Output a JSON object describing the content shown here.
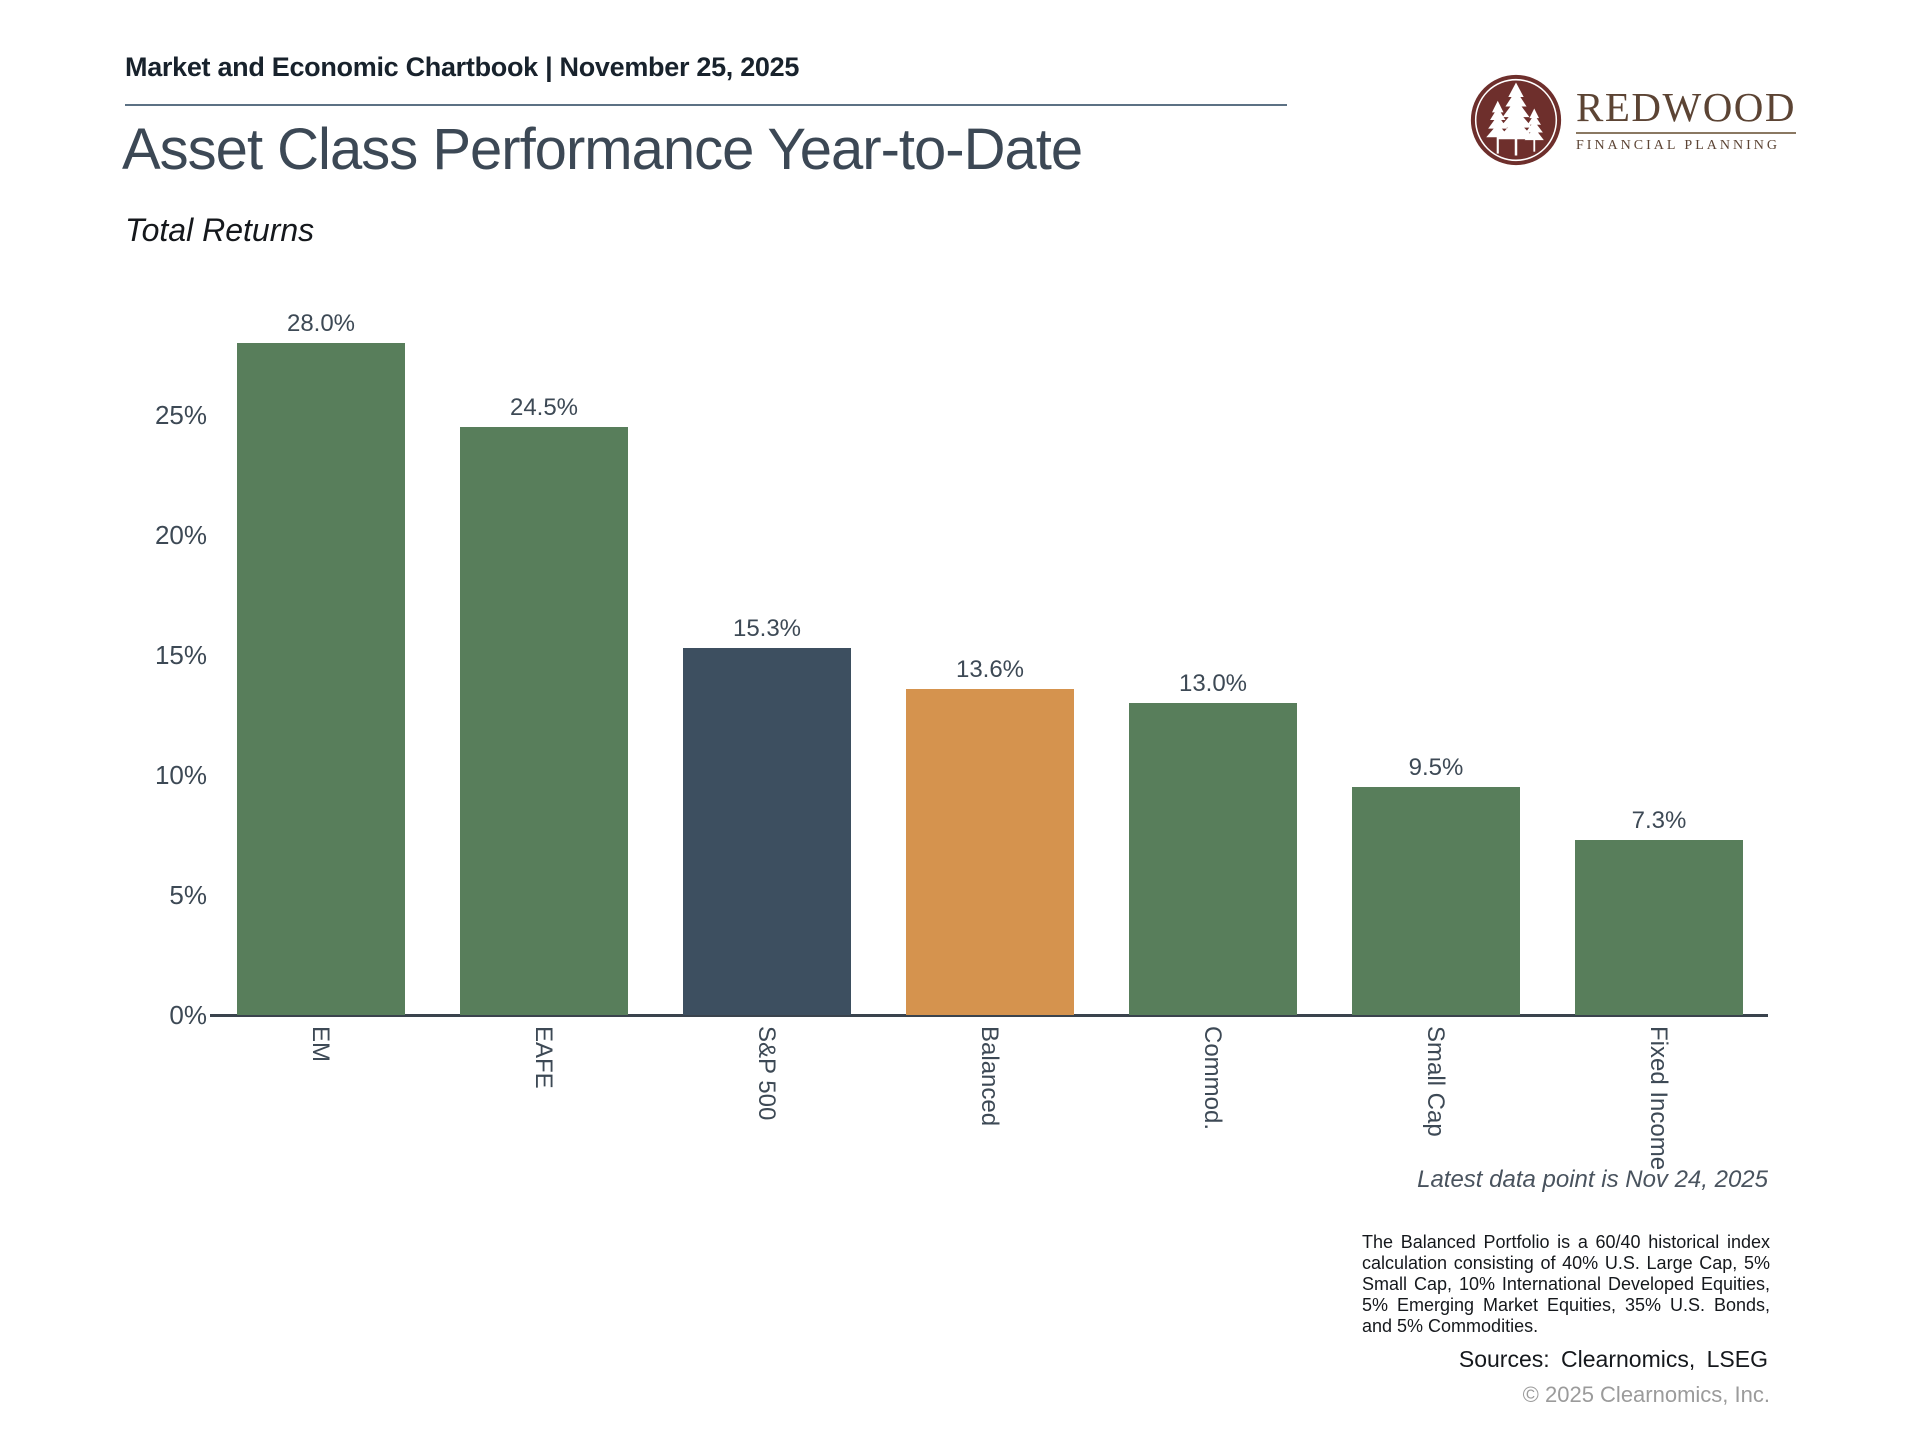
{
  "header": {
    "kicker": "Market and Economic Chartbook | November 25, 2025",
    "title": "Asset Class Performance Year-to-Date",
    "subtitle": "Total Returns"
  },
  "logo": {
    "name": "REDWOOD",
    "tagline": "FINANCIAL PLANNING",
    "icon": "pine-trees-circle",
    "circle_color": "#6e2f2c",
    "text_color": "#5c4434"
  },
  "chart_data": {
    "type": "bar",
    "title": "Asset Class Performance Year-to-Date",
    "subtitle": "Total Returns",
    "categories": [
      "EM",
      "EAFE",
      "S&P 500",
      "Balanced",
      "Commod.",
      "Small Cap",
      "Fixed Income"
    ],
    "values": [
      28.0,
      24.5,
      15.3,
      13.6,
      13.0,
      9.5,
      7.3
    ],
    "value_labels": [
      "28.0%",
      "24.5%",
      "15.3%",
      "13.6%",
      "13.0%",
      "9.5%",
      "7.3%"
    ],
    "bar_colors": [
      "#587e5b",
      "#587e5b",
      "#3d4f60",
      "#d5934e",
      "#587e5b",
      "#587e5b",
      "#587e5b"
    ],
    "xlabel": "",
    "ylabel": "",
    "ylim": [
      0,
      30
    ],
    "yticks": [
      "0%",
      "5%",
      "10%",
      "15%",
      "20%",
      "25%"
    ],
    "grid": false,
    "legend": "none"
  },
  "footer": {
    "latest_note": "Latest data point is Nov 24, 2025",
    "disclosure": "The Balanced Portfolio is a 60/40 historical index calculation consisting of 40% U.S. Large Cap, 5% Small Cap, 10% International Developed Equities, 5% Emerging Market Equities, 35% U.S. Bonds, and 5% Commodities.",
    "sources": "Sources: Clearnomics, LSEG",
    "copyright": "© 2025 Clearnomics, Inc."
  }
}
